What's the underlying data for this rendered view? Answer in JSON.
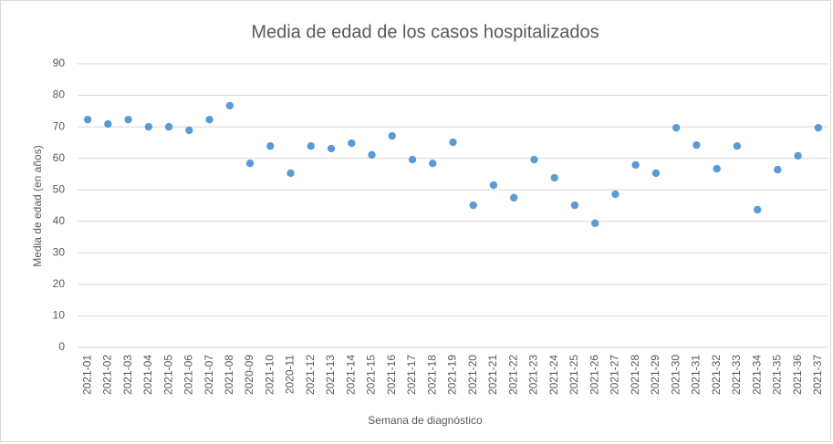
{
  "chart_data": {
    "type": "scatter",
    "title": "Media de edad de los casos hospitalizados",
    "x_label": "Semana de diagnóstico",
    "y_label": "Media de edad (en años)",
    "categories": [
      "2021-01",
      "2021-02",
      "2021-03",
      "2021-04",
      "2021-05",
      "2021-06",
      "2021-07",
      "2021-08",
      "2020-09",
      "2021-10",
      "2020-11",
      "2021-12",
      "2021-13",
      "2021-14",
      "2021-15",
      "2021-16",
      "2021-17",
      "2021-18",
      "2021-19",
      "2021-20",
      "2021-21",
      "2021-22",
      "2021-23",
      "2021-24",
      "2021-25",
      "2021-26",
      "2021-27",
      "2021-28",
      "2021-29",
      "2021-30",
      "2021-31",
      "2021-32",
      "2021-33",
      "2021-34",
      "2021-35",
      "2021-36",
      "2021-37"
    ],
    "values": [
      72.3,
      70.9,
      72.3,
      70,
      70,
      68.9,
      72.3,
      76.7,
      58.4,
      63.9,
      55.3,
      63.9,
      63.1,
      64.8,
      61.1,
      67.1,
      59.6,
      58.4,
      65.1,
      45.1,
      51.5,
      47.5,
      59.6,
      53.8,
      45.1,
      39.4,
      48.6,
      57.9,
      55.3,
      69.7,
      64.2,
      56.7,
      63.9,
      43.7,
      56.4,
      60.8,
      69.7
    ],
    "color": "#5b9bd5",
    "ylim": [
      0,
      90
    ],
    "yticks": [
      0,
      10,
      20,
      30,
      40,
      50,
      60,
      70,
      80,
      90
    ],
    "grid": true
  }
}
